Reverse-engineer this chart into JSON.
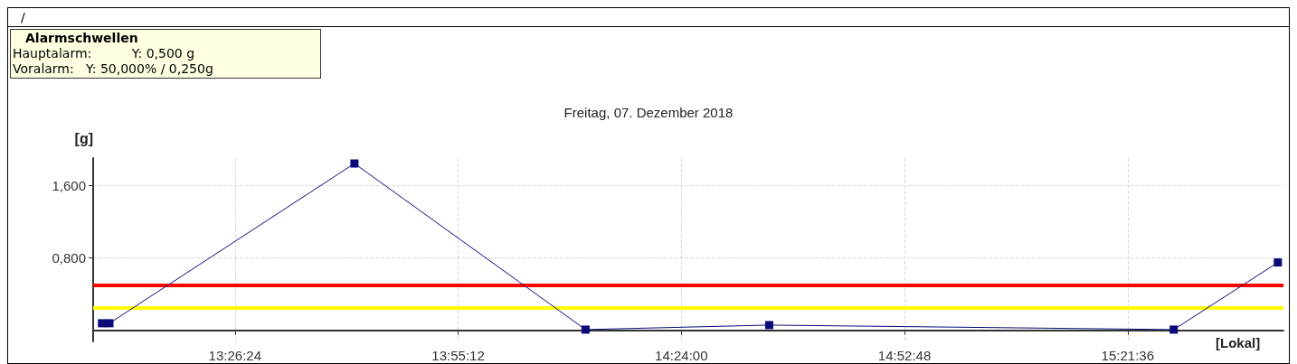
{
  "chart_data": {
    "type": "line",
    "title": "Freitag, 07. Dezember 2018",
    "xlabel": "[Lokal]",
    "ylabel": "[g]",
    "annotations": [
      "/",
      "Alarmschwellen",
      "Hauptalarm:          Y: 0,500 g",
      "Voralarm:   Y: 50,000% / 0,250g"
    ],
    "x": [
      13.154,
      13.17,
      13.697,
      14.194,
      14.589,
      15.459,
      15.683
    ],
    "series": [
      {
        "color": "#0a0a78",
        "values": [
          0.08,
          0.08,
          1.84,
          0.01,
          0.06,
          0.01,
          0.75
        ]
      }
    ],
    "xlim": [
      13.135,
      15.695
    ],
    "xticks": [
      {
        "value": 13.44,
        "label": "13:26:24"
      },
      {
        "value": 13.92,
        "label": "13:55:12"
      },
      {
        "value": 14.4,
        "label": "14:24:00"
      },
      {
        "value": 14.88,
        "label": "14:52:48"
      },
      {
        "value": 15.36,
        "label": "15:21:36"
      }
    ],
    "ylim": [
      -0.12,
      1.9
    ],
    "yticks": [
      {
        "value": 0.8,
        "label": "0,800"
      },
      {
        "value": 1.6,
        "label": "1,600"
      }
    ],
    "ref_lines": [
      {
        "axis": "y",
        "value": 0.5,
        "color": "#ff0000"
      },
      {
        "axis": "y",
        "value": 0.25,
        "color": "#ffff00"
      }
    ],
    "grid": true,
    "marker": "square",
    "line_style": "solid"
  }
}
